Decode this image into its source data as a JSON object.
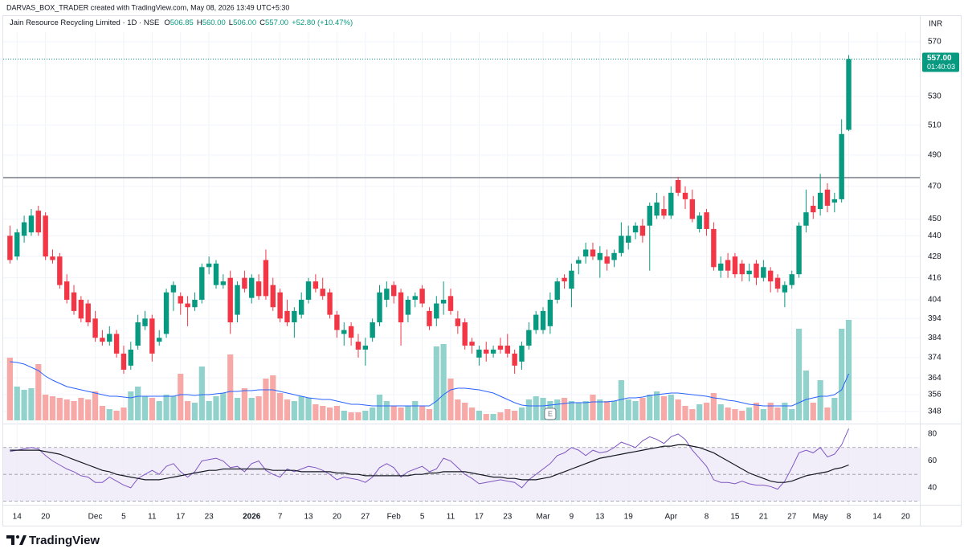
{
  "chart_data": {
    "type": "candlestick",
    "header": "DARVAS_BOX_TRADER created with TradingView.com, May 08, 2026 13:49 UTC+5:30",
    "title": "Jain Resource Recycling Limited · 1D · NSE",
    "legend": [
      {
        "key": "O",
        "value": "506.85"
      },
      {
        "key": "H",
        "value": "560.00"
      },
      {
        "key": "L",
        "value": "506.00"
      },
      {
        "key": "C",
        "value": "557.00"
      }
    ],
    "change": "+52.80 (+10.47%)",
    "currency": "INR",
    "last_price_label": "557.00",
    "countdown": "01:40:03",
    "brand": "TradingView",
    "open": [
      440,
      428,
      440,
      442,
      455,
      452,
      428,
      428,
      414,
      408,
      404,
      402,
      394,
      384,
      382,
      386,
      376,
      370,
      380,
      390,
      394,
      382,
      386,
      408,
      406,
      402,
      400,
      404,
      422,
      412,
      412,
      416,
      396,
      416,
      405,
      414,
      426,
      412,
      408,
      398,
      392,
      396,
      404,
      414,
      410,
      408,
      396,
      386,
      390,
      382,
      378,
      384,
      392,
      404,
      412,
      408,
      396,
      404,
      410,
      398,
      394,
      402,
      406,
      394,
      392,
      382,
      374,
      378,
      376,
      380,
      380,
      376,
      372,
      380,
      388,
      388,
      390,
      404,
      416,
      410,
      424,
      428,
      432,
      426,
      428,
      426,
      430,
      436,
      442,
      446,
      446,
      452,
      456,
      452,
      474,
      466,
      462,
      444,
      454,
      444,
      420,
      426,
      428,
      424,
      418,
      424,
      416,
      420,
      416,
      408,
      412,
      418,
      446,
      458,
      456,
      468,
      460,
      462,
      506.85
    ],
    "high": [
      446,
      444,
      452,
      456,
      458,
      454,
      432,
      430,
      418,
      412,
      406,
      404,
      398,
      388,
      390,
      388,
      380,
      382,
      396,
      398,
      396,
      388,
      410,
      414,
      408,
      406,
      408,
      424,
      428,
      426,
      418,
      420,
      414,
      420,
      418,
      418,
      432,
      416,
      410,
      404,
      400,
      408,
      416,
      418,
      416,
      410,
      398,
      392,
      392,
      386,
      384,
      394,
      412,
      414,
      414,
      410,
      406,
      408,
      412,
      400,
      406,
      414,
      410,
      398,
      394,
      384,
      380,
      382,
      380,
      384,
      386,
      378,
      382,
      392,
      398,
      400,
      408,
      416,
      418,
      424,
      428,
      436,
      436,
      434,
      432,
      432,
      448,
      446,
      448,
      450,
      460,
      466,
      464,
      470,
      476,
      470,
      468,
      454,
      456,
      448,
      428,
      430,
      430,
      426,
      424,
      426,
      426,
      422,
      418,
      414,
      420,
      448,
      468,
      464,
      478,
      472,
      466,
      514,
      560
    ],
    "low": [
      424,
      426,
      436,
      440,
      440,
      426,
      424,
      410,
      402,
      396,
      392,
      390,
      382,
      380,
      380,
      374,
      366,
      368,
      378,
      388,
      372,
      380,
      384,
      398,
      396,
      390,
      398,
      402,
      418,
      410,
      410,
      386,
      392,
      408,
      402,
      404,
      404,
      398,
      392,
      390,
      384,
      394,
      402,
      408,
      404,
      394,
      384,
      380,
      380,
      374,
      370,
      382,
      390,
      400,
      402,
      380,
      392,
      400,
      400,
      388,
      390,
      396,
      396,
      386,
      378,
      376,
      370,
      372,
      374,
      376,
      374,
      366,
      368,
      378,
      386,
      386,
      386,
      402,
      410,
      400,
      418,
      424,
      426,
      416,
      420,
      422,
      428,
      432,
      438,
      436,
      420,
      450,
      450,
      450,
      464,
      456,
      448,
      442,
      440,
      420,
      416,
      416,
      416,
      414,
      414,
      412,
      414,
      408,
      408,
      400,
      410,
      416,
      442,
      450,
      452,
      454,
      454,
      460,
      506
    ],
    "close": [
      426,
      442,
      448,
      452,
      442,
      428,
      426,
      412,
      404,
      398,
      394,
      392,
      384,
      382,
      386,
      376,
      368,
      378,
      392,
      394,
      376,
      384,
      408,
      412,
      402,
      400,
      404,
      422,
      424,
      424,
      414,
      392,
      412,
      410,
      416,
      406,
      406,
      400,
      394,
      392,
      398,
      404,
      414,
      410,
      406,
      396,
      388,
      388,
      384,
      378,
      380,
      392,
      408,
      410,
      406,
      392,
      404,
      406,
      402,
      390,
      402,
      404,
      398,
      390,
      380,
      380,
      378,
      376,
      378,
      378,
      376,
      370,
      380,
      388,
      396,
      398,
      404,
      414,
      414,
      420,
      426,
      432,
      428,
      430,
      424,
      430,
      440,
      440,
      446,
      440,
      458,
      460,
      452,
      466,
      466,
      462,
      450,
      452,
      444,
      422,
      424,
      420,
      418,
      418,
      420,
      416,
      422,
      414,
      410,
      412,
      418,
      446,
      454,
      454,
      466,
      458,
      462,
      504,
      557
    ],
    "volume": [
      78,
      42,
      38,
      40,
      70,
      32,
      30,
      28,
      26,
      24,
      28,
      26,
      36,
      18,
      14,
      12,
      16,
      36,
      42,
      30,
      28,
      24,
      32,
      30,
      58,
      24,
      22,
      67,
      24,
      30,
      34,
      82,
      28,
      40,
      28,
      30,
      52,
      56,
      34,
      26,
      24,
      30,
      28,
      20,
      18,
      16,
      18,
      12,
      10,
      10,
      12,
      16,
      32,
      24,
      18,
      16,
      18,
      24,
      18,
      14,
      92,
      95,
      52,
      26,
      22,
      16,
      12,
      8,
      8,
      10,
      14,
      12,
      16,
      26,
      30,
      28,
      24,
      26,
      28,
      24,
      22,
      24,
      32,
      26,
      24,
      24,
      50,
      26,
      24,
      28,
      32,
      36,
      30,
      32,
      26,
      18,
      14,
      20,
      22,
      34,
      20,
      16,
      14,
      12,
      16,
      22,
      14,
      22,
      16,
      22,
      14,
      114,
      62,
      22,
      50,
      16,
      28,
      114,
      125
    ],
    "volume_ma": [
      73,
      72,
      70,
      66,
      62,
      55,
      50,
      46,
      42,
      40,
      38,
      36,
      34,
      32,
      30,
      30,
      29,
      28,
      30,
      30,
      30,
      30,
      30,
      30,
      32,
      32,
      31,
      32,
      32,
      33,
      34,
      36,
      36,
      37,
      37,
      38,
      38,
      38,
      36,
      34,
      32,
      30,
      28,
      27,
      26,
      26,
      24,
      22,
      20,
      20,
      19,
      18,
      18,
      18,
      18,
      18,
      18,
      18,
      18,
      18,
      24,
      32,
      38,
      40,
      40,
      39,
      38,
      36,
      34,
      30,
      26,
      22,
      19,
      18,
      18,
      18,
      19,
      20,
      21,
      22,
      22,
      22,
      23,
      23,
      23,
      24,
      26,
      28,
      28,
      29,
      31,
      32,
      33,
      34,
      34,
      33,
      32,
      31,
      30,
      28,
      27,
      25,
      24,
      22,
      20,
      19,
      18,
      18,
      18,
      18,
      18,
      22,
      26,
      28,
      30,
      30,
      32,
      38,
      58
    ],
    "volume_lim": [
      0,
      140
    ],
    "rsi": [
      67,
      68,
      69,
      70,
      69,
      64,
      60,
      57,
      54,
      52,
      49,
      48,
      44,
      44,
      48,
      45,
      42,
      40,
      47,
      50,
      53,
      50,
      56,
      58,
      52,
      48,
      52,
      60,
      61,
      62,
      60,
      55,
      56,
      52,
      58,
      60,
      53,
      50,
      48,
      54,
      52,
      54,
      56,
      55,
      53,
      50,
      46,
      48,
      47,
      46,
      44,
      48,
      55,
      58,
      55,
      48,
      52,
      54,
      56,
      52,
      54,
      62,
      60,
      55,
      50,
      47,
      43,
      44,
      45,
      46,
      45,
      44,
      40,
      46,
      50,
      54,
      58,
      64,
      66,
      70,
      68,
      64,
      68,
      66,
      67,
      70,
      74,
      72,
      70,
      75,
      78,
      76,
      73,
      78,
      80,
      76,
      68,
      62,
      56,
      46,
      44,
      44,
      43,
      45,
      43,
      42,
      42,
      41,
      39,
      45,
      55,
      66,
      68,
      66,
      70,
      63,
      65,
      72,
      84
    ],
    "rsi_ma": [
      68,
      68,
      68,
      68,
      68,
      67,
      66,
      65,
      63,
      61,
      59,
      57,
      55,
      53,
      52,
      50,
      49,
      48,
      47,
      46,
      46,
      46,
      47,
      48,
      49,
      50,
      51,
      52,
      53,
      53,
      54,
      54,
      54,
      54,
      54,
      54,
      54,
      53,
      53,
      53,
      53,
      52,
      52,
      52,
      52,
      52,
      51,
      51,
      50,
      50,
      49,
      49,
      49,
      49,
      49,
      49,
      49,
      50,
      50,
      51,
      51,
      52,
      52,
      52,
      52,
      51,
      50,
      49,
      48,
      48,
      47,
      47,
      46,
      46,
      46,
      47,
      48,
      50,
      52,
      54,
      56,
      58,
      60,
      62,
      63,
      64,
      65,
      66,
      67,
      68,
      69,
      70,
      71,
      71,
      72,
      72,
      71,
      70,
      68,
      66,
      63,
      60,
      57,
      54,
      51,
      49,
      47,
      45,
      44,
      44,
      45,
      47,
      49,
      50,
      51,
      52,
      54,
      55,
      57
    ],
    "rsi_lim": [
      28.6,
      86
    ],
    "rsi_ticks": [
      40,
      60,
      80
    ],
    "rsi_levels": [
      30,
      50,
      70
    ],
    "hline": 475.5,
    "annotations": [
      {
        "text": "E",
        "x": 76
      }
    ],
    "xlim": [
      -1.4,
      128
    ],
    "xticks": [
      {
        "value": 1,
        "label": "14"
      },
      {
        "value": 5,
        "label": "20"
      },
      {
        "value": 12,
        "label": "Dec"
      },
      {
        "value": 16,
        "label": "5"
      },
      {
        "value": 20,
        "label": "11"
      },
      {
        "value": 24,
        "label": "17"
      },
      {
        "value": 28,
        "label": "23"
      },
      {
        "value": 34,
        "label": "2026",
        "bold": true
      },
      {
        "value": 38,
        "label": "7"
      },
      {
        "value": 42,
        "label": "13"
      },
      {
        "value": 46,
        "label": "20"
      },
      {
        "value": 50,
        "label": "27"
      },
      {
        "value": 54,
        "label": "Feb"
      },
      {
        "value": 58,
        "label": "5"
      },
      {
        "value": 62,
        "label": "11"
      },
      {
        "value": 66,
        "label": "17"
      },
      {
        "value": 70,
        "label": "23"
      },
      {
        "value": 75,
        "label": "Mar"
      },
      {
        "value": 79,
        "label": "9"
      },
      {
        "value": 83,
        "label": "13"
      },
      {
        "value": 87,
        "label": "19"
      },
      {
        "value": 93,
        "label": "Apr"
      },
      {
        "value": 98,
        "label": "8"
      },
      {
        "value": 102,
        "label": "15"
      },
      {
        "value": 106,
        "label": "21"
      },
      {
        "value": 110,
        "label": "27"
      },
      {
        "value": 114,
        "label": "May"
      },
      {
        "value": 118,
        "label": "8"
      },
      {
        "value": 122,
        "label": "14"
      },
      {
        "value": 126,
        "label": "20"
      }
    ],
    "ylim": [
      343.2,
      577.4
    ],
    "yticks": [
      348,
      356,
      364,
      374,
      384,
      394,
      404,
      416,
      428,
      440,
      450,
      470,
      490,
      510,
      530,
      570
    ],
    "log": true,
    "grid": true,
    "colors": {
      "up": "#089981",
      "down": "#f23645",
      "volume_up": "#92d2cc",
      "volume_down": "#f7a9a7",
      "volume_ma": "#2962ff",
      "rsi": "#7e57c2",
      "rsi_ma": "#131722",
      "hline": "#787b86",
      "rsi_band": "#ede7f6"
    }
  }
}
